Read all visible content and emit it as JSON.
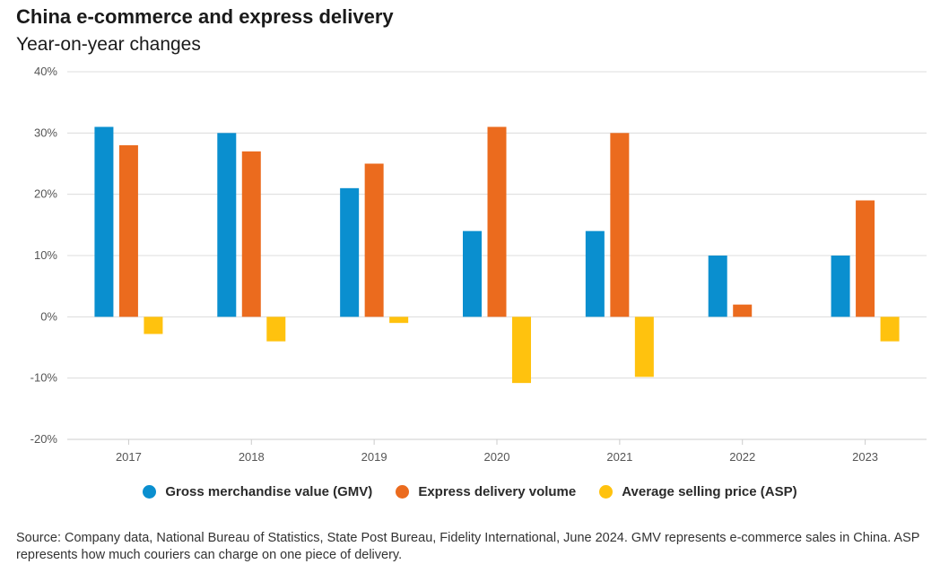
{
  "header": {
    "title": "China e-commerce and express delivery",
    "subtitle": "Year-on-year changes"
  },
  "colors": {
    "gmv": "#0a8fcf",
    "express": "#eb6b1e",
    "asp": "#ffc20e",
    "grid": "#dcdcdc",
    "axis": "#cccccc",
    "tick_text": "#555555"
  },
  "chart_data": {
    "type": "bar",
    "title": "China e-commerce and express delivery",
    "subtitle": "Year-on-year changes",
    "xlabel": "",
    "ylabel": "",
    "ylim": [
      -20,
      40
    ],
    "yticks": [
      -20,
      -10,
      0,
      10,
      20,
      30,
      40
    ],
    "ytick_labels": [
      "-20%",
      "-10%",
      "0%",
      "10%",
      "20%",
      "30%",
      "40%"
    ],
    "grid": true,
    "legend_position": "bottom-center",
    "categories": [
      "2017",
      "2018",
      "2019",
      "2020",
      "2021",
      "2022",
      "2023"
    ],
    "series": [
      {
        "name": "Gross merchandise value (GMV)",
        "key": "gmv",
        "values": [
          31,
          30,
          21,
          14,
          14,
          10,
          10
        ]
      },
      {
        "name": "Express delivery volume",
        "key": "express",
        "values": [
          28,
          27,
          25,
          31,
          30,
          2,
          19
        ]
      },
      {
        "name": "Average selling price (ASP)",
        "key": "asp",
        "values": [
          -2.8,
          -4,
          -1,
          -10.8,
          -9.8,
          0,
          -4
        ]
      }
    ]
  },
  "legend": {
    "items": [
      {
        "label": "Gross merchandise value (GMV)",
        "color_key": "gmv"
      },
      {
        "label": "Express delivery volume",
        "color_key": "express"
      },
      {
        "label": "Average selling price (ASP)",
        "color_key": "asp"
      }
    ]
  },
  "footer": {
    "source": "Source: Company data, National Bureau of Statistics, State Post Bureau, Fidelity International, June 2024. GMV represents e-commerce sales in China. ASP represents how much couriers can charge on one piece of delivery."
  }
}
